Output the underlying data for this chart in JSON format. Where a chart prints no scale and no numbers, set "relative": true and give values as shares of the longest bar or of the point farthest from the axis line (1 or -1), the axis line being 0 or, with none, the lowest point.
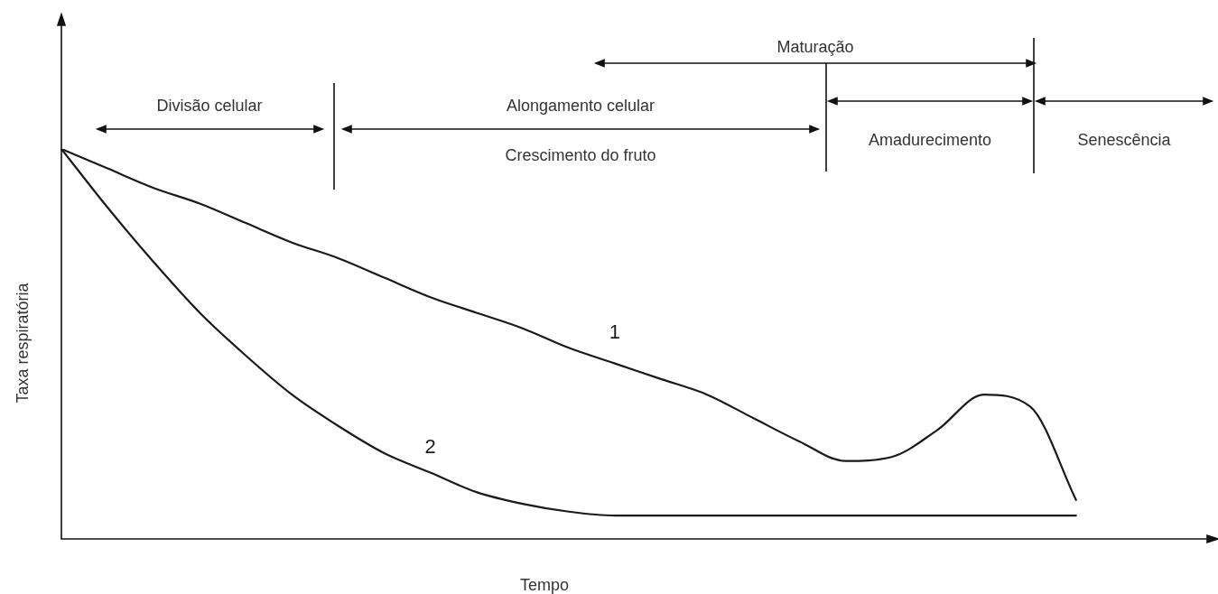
{
  "chart_data": {
    "type": "line",
    "relative": true,
    "xlabel": "Tempo",
    "ylabel": "Taxa respiratória",
    "legend": false,
    "marker": "none",
    "line_style": "solid",
    "categories": [
      null,
      null,
      null,
      null,
      null,
      null,
      null,
      null,
      null,
      null,
      null,
      null,
      null,
      null,
      null,
      null,
      null,
      null,
      null,
      null,
      null,
      null,
      null,
      null,
      null,
      null
    ],
    "series": [
      {
        "name": "1",
        "color": "#1a1a1a",
        "values": [
          1.0,
          0.95,
          0.9,
          0.86,
          0.81,
          0.76,
          0.72,
          0.67,
          0.62,
          0.58,
          0.54,
          0.49,
          0.45,
          0.41,
          0.37,
          0.31,
          0.25,
          0.2,
          0.21,
          0.28,
          0.37,
          0.34,
          0.1,
          null,
          null,
          null
        ]
      },
      {
        "name": "2",
        "color": "#1a1a1a",
        "values": [
          1.0,
          0.85,
          0.71,
          0.58,
          0.47,
          0.37,
          0.29,
          0.22,
          0.17,
          0.12,
          0.09,
          0.07,
          0.06,
          0.06,
          0.06,
          0.06,
          0.06,
          0.06,
          0.06,
          0.06,
          0.06,
          0.06,
          0.06,
          null,
          null,
          null
        ]
      }
    ],
    "annotations": [
      "Maturação",
      "Divisão celular",
      "Alongamento celular",
      "Crescimento do fruto",
      "Amadurecimento",
      "Senescência"
    ]
  }
}
